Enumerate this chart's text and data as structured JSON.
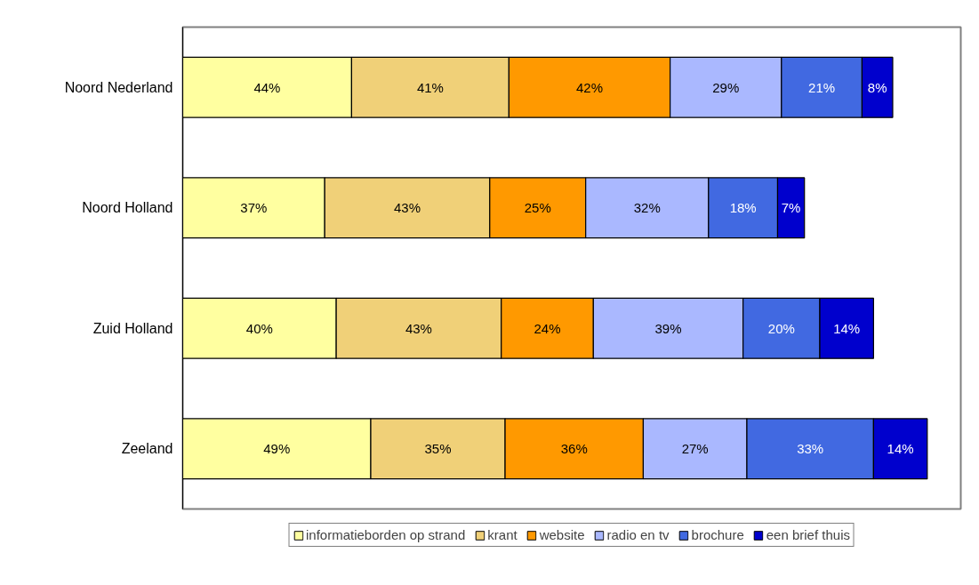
{
  "chart_data": {
    "type": "bar",
    "orientation": "horizontal",
    "stacked": true,
    "legend": "bottom",
    "grid": false,
    "categories": [
      "Noord Nederland",
      "Noord Holland",
      "Zuid Holland",
      "Zeeland"
    ],
    "series": [
      {
        "name": "informatieborden op strand",
        "color": "#ffffa0",
        "values": [
          44,
          37,
          40,
          49
        ],
        "value_labels": [
          "44%",
          "37%",
          "40%",
          "49%"
        ]
      },
      {
        "name": "krant",
        "color": "#f0d078",
        "values": [
          41,
          43,
          43,
          35
        ],
        "value_labels": [
          "41%",
          "43%",
          "43%",
          "35%"
        ]
      },
      {
        "name": "website",
        "color": "#ff9900",
        "values": [
          42,
          25,
          24,
          36
        ],
        "value_labels": [
          "42%",
          "25%",
          "24%",
          "36%"
        ]
      },
      {
        "name": "radio en tv",
        "color": "#aab8ff",
        "values": [
          29,
          32,
          39,
          27
        ],
        "value_labels": [
          "29%",
          "32%",
          "39%",
          "27%"
        ]
      },
      {
        "name": "brochure",
        "color": "#4169e1",
        "values": [
          21,
          18,
          20,
          33
        ],
        "value_labels": [
          "21%",
          "18%",
          "20%",
          "33%"
        ]
      },
      {
        "name": "een brief thuis",
        "color": "#0000cd",
        "values": [
          8,
          7,
          14,
          14
        ],
        "value_labels": [
          "8%",
          "7%",
          "14%",
          "14%"
        ]
      }
    ]
  }
}
